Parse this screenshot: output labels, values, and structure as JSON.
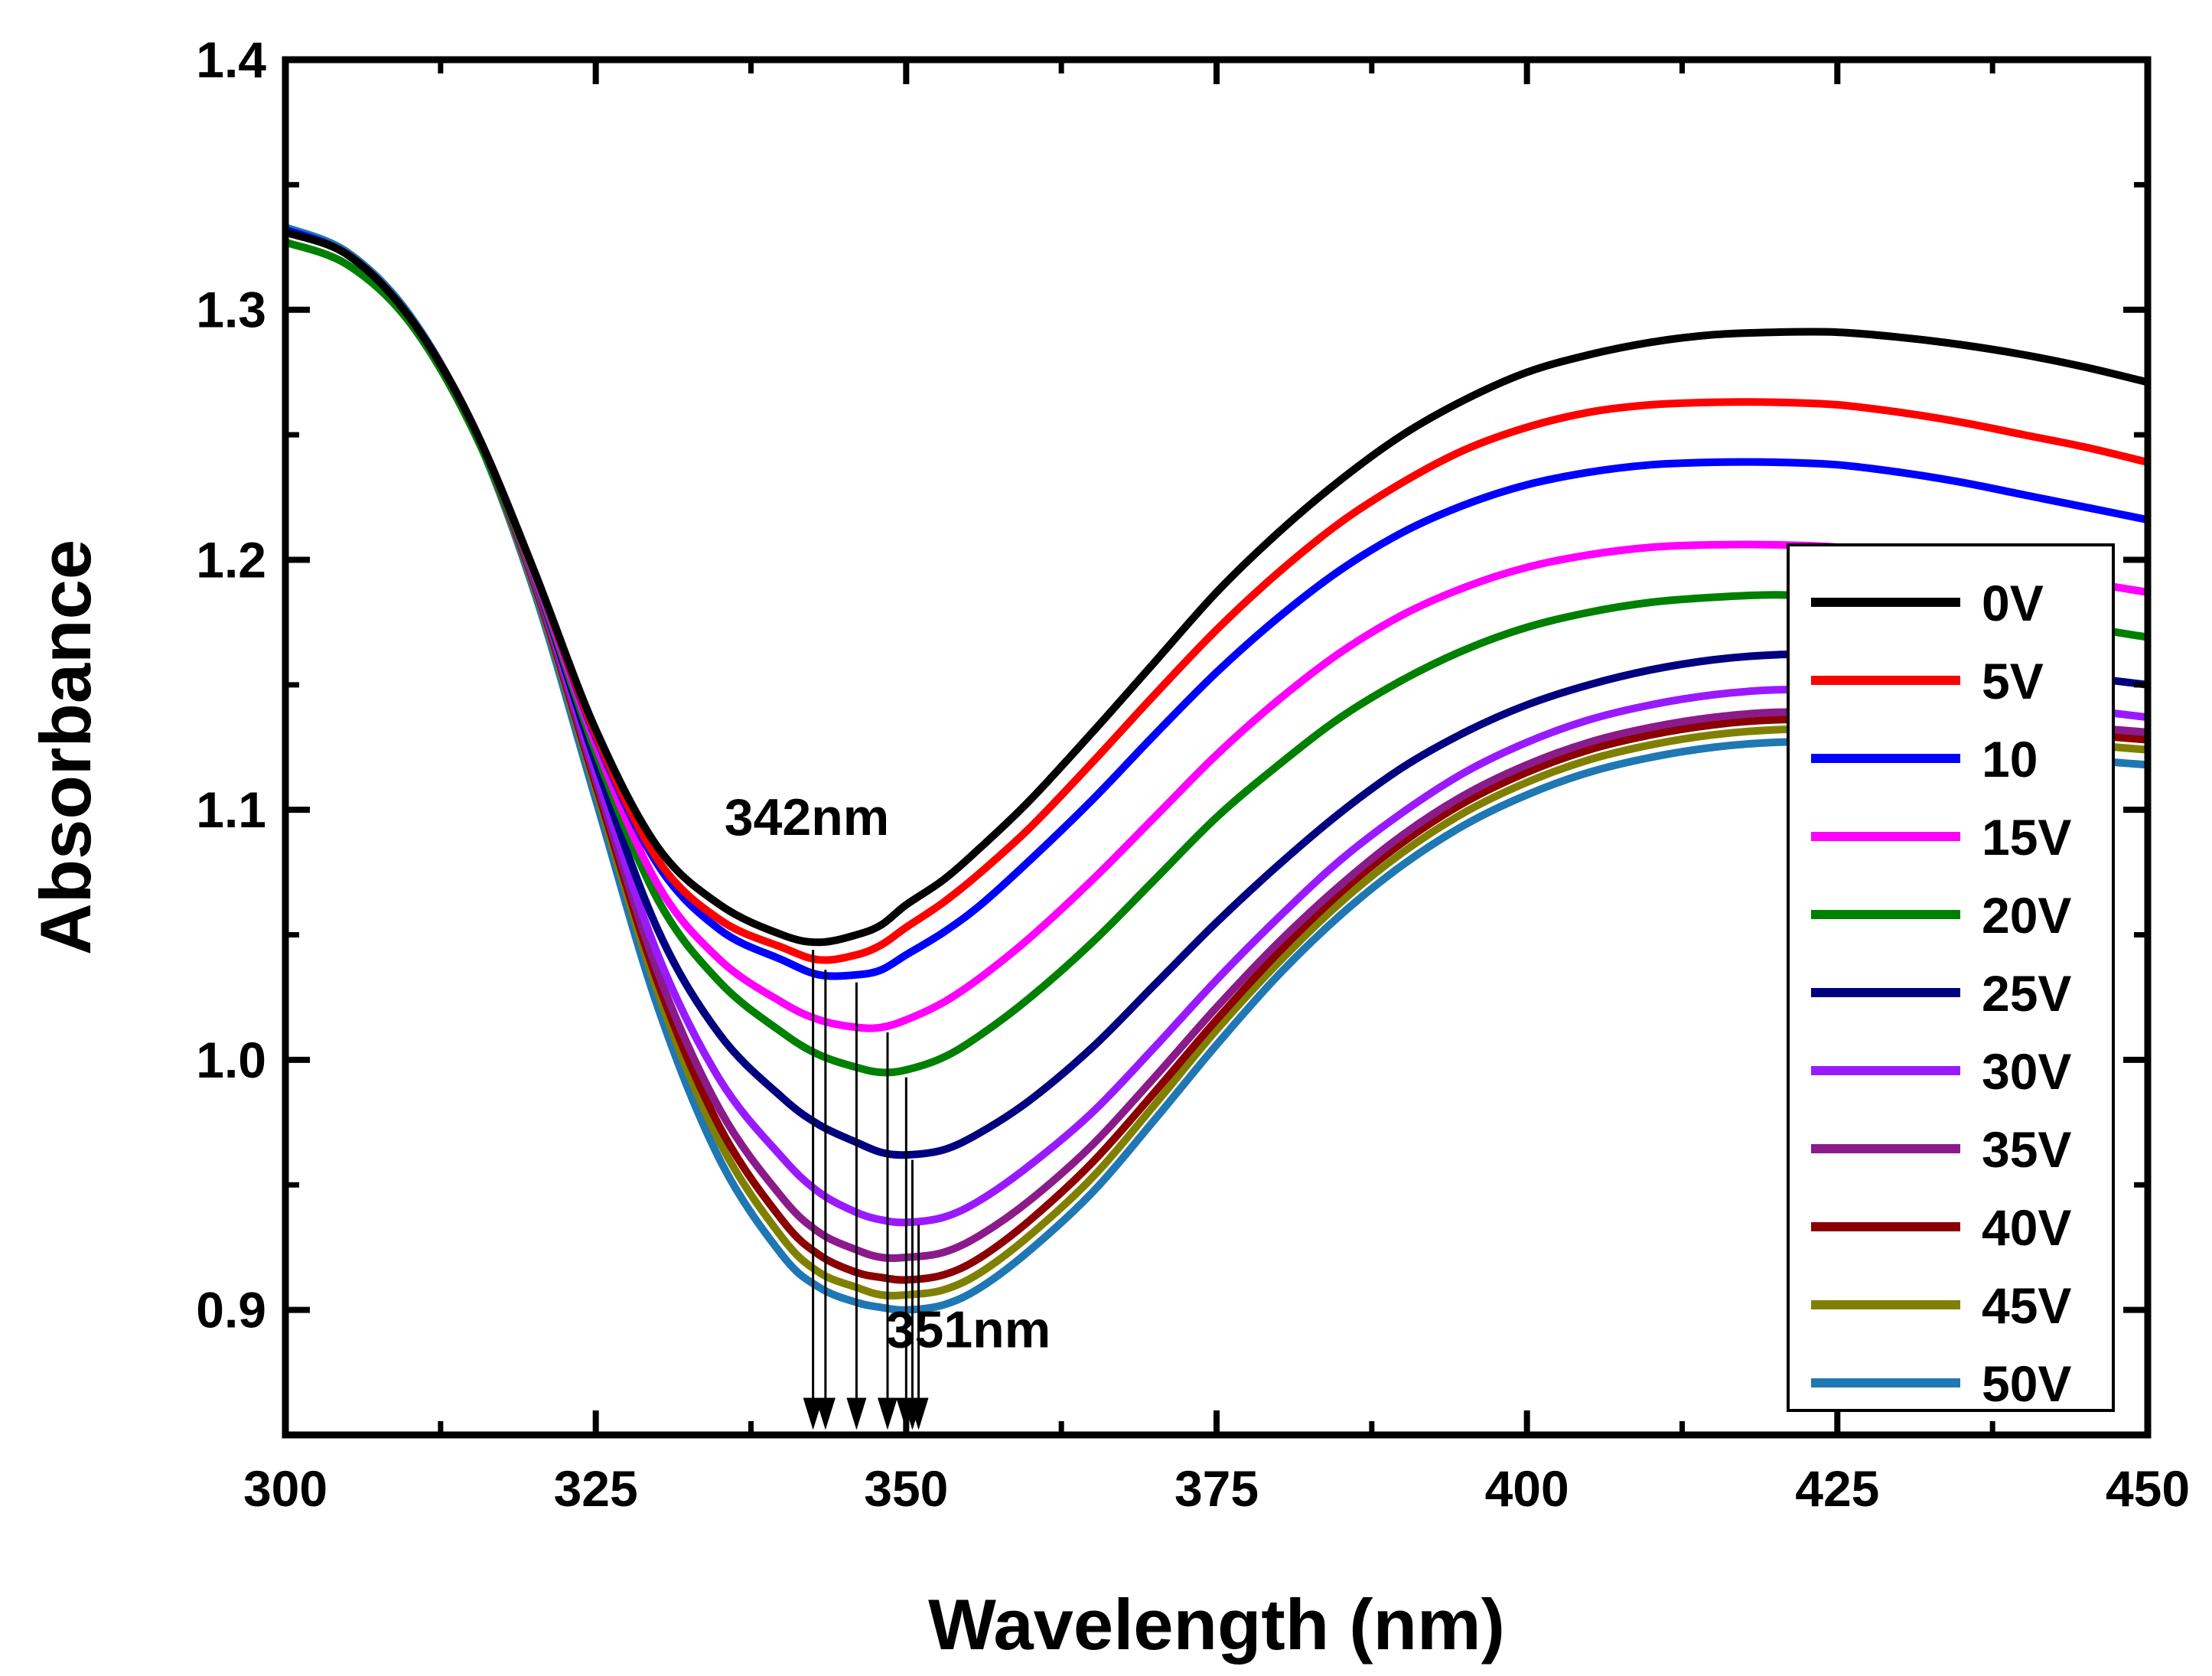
{
  "chart_data": {
    "type": "line",
    "xlabel": "Wavelength (nm)",
    "ylabel": "Absorbance",
    "xlim": [
      300,
      450
    ],
    "ylim": [
      0.85,
      1.4
    ],
    "xticks": [
      300,
      325,
      350,
      375,
      400,
      425,
      450
    ],
    "yticks": [
      0.9,
      1.0,
      1.1,
      1.2,
      1.3,
      1.4
    ],
    "xtick_labels": [
      "300",
      "325",
      "350",
      "375",
      "400",
      "425",
      "450"
    ],
    "ytick_labels": [
      "0.9",
      "1.0",
      "1.1",
      "1.2",
      "1.3",
      "1.4"
    ],
    "grid": false,
    "legend_position": "right",
    "x": [
      300,
      305,
      310,
      315,
      320,
      325,
      330,
      335,
      340,
      343,
      346,
      348,
      350,
      353,
      356,
      360,
      365,
      370,
      375,
      380,
      385,
      390,
      395,
      400,
      405,
      410,
      415,
      420,
      425,
      430,
      435,
      440,
      445,
      450
    ],
    "series": [
      {
        "name": "0V",
        "color": "#000000",
        "values": [
          1.331,
          1.322,
          1.297,
          1.255,
          1.196,
          1.132,
          1.085,
          1.062,
          1.05,
          1.047,
          1.05,
          1.054,
          1.062,
          1.072,
          1.085,
          1.104,
          1.131,
          1.159,
          1.187,
          1.211,
          1.232,
          1.25,
          1.264,
          1.275,
          1.282,
          1.287,
          1.29,
          1.291,
          1.291,
          1.289,
          1.286,
          1.282,
          1.277,
          1.271
        ]
      },
      {
        "name": "5V",
        "color": "#ff0000",
        "values": [
          1.331,
          1.322,
          1.297,
          1.255,
          1.196,
          1.13,
          1.08,
          1.056,
          1.045,
          1.04,
          1.042,
          1.046,
          1.053,
          1.063,
          1.075,
          1.093,
          1.119,
          1.146,
          1.172,
          1.195,
          1.215,
          1.231,
          1.244,
          1.253,
          1.259,
          1.262,
          1.263,
          1.263,
          1.262,
          1.259,
          1.255,
          1.25,
          1.245,
          1.239
        ]
      },
      {
        "name": "10",
        "color": "#0000ff",
        "values": [
          1.332,
          1.322,
          1.297,
          1.255,
          1.196,
          1.129,
          1.078,
          1.052,
          1.04,
          1.034,
          1.034,
          1.036,
          1.042,
          1.051,
          1.062,
          1.08,
          1.104,
          1.13,
          1.155,
          1.177,
          1.196,
          1.211,
          1.222,
          1.23,
          1.235,
          1.238,
          1.239,
          1.239,
          1.238,
          1.235,
          1.231,
          1.226,
          1.221,
          1.216
        ]
      },
      {
        "name": "15V",
        "color": "#ff00ff",
        "values": [
          1.331,
          1.322,
          1.297,
          1.255,
          1.195,
          1.126,
          1.07,
          1.04,
          1.023,
          1.016,
          1.013,
          1.013,
          1.016,
          1.023,
          1.033,
          1.049,
          1.072,
          1.097,
          1.122,
          1.144,
          1.163,
          1.178,
          1.189,
          1.197,
          1.202,
          1.205,
          1.206,
          1.206,
          1.205,
          1.202,
          1.199,
          1.195,
          1.191,
          1.187
        ]
      },
      {
        "name": "20V",
        "color": "#008000",
        "values": [
          1.327,
          1.318,
          1.295,
          1.253,
          1.194,
          1.123,
          1.064,
          1.031,
          1.011,
          1.002,
          0.997,
          0.995,
          0.996,
          1.001,
          1.01,
          1.025,
          1.047,
          1.072,
          1.097,
          1.118,
          1.137,
          1.152,
          1.164,
          1.173,
          1.179,
          1.183,
          1.185,
          1.186,
          1.185,
          1.183,
          1.18,
          1.177,
          1.173,
          1.169
        ]
      },
      {
        "name": "25V",
        "color": "#000080",
        "values": [
          1.331,
          1.322,
          1.297,
          1.255,
          1.194,
          1.119,
          1.052,
          1.01,
          0.985,
          0.974,
          0.967,
          0.963,
          0.962,
          0.964,
          0.971,
          0.984,
          1.005,
          1.03,
          1.055,
          1.078,
          1.099,
          1.117,
          1.131,
          1.142,
          1.15,
          1.156,
          1.16,
          1.162,
          1.162,
          1.161,
          1.159,
          1.156,
          1.153,
          1.15
        ]
      },
      {
        "name": "30V",
        "color": "#9a1aff",
        "values": [
          1.331,
          1.322,
          1.297,
          1.255,
          1.193,
          1.115,
          1.042,
          0.992,
          0.961,
          0.947,
          0.939,
          0.936,
          0.935,
          0.937,
          0.944,
          0.958,
          0.979,
          1.005,
          1.032,
          1.057,
          1.08,
          1.099,
          1.115,
          1.127,
          1.136,
          1.142,
          1.146,
          1.148,
          1.148,
          1.147,
          1.145,
          1.143,
          1.14,
          1.137
        ]
      },
      {
        "name": "35V",
        "color": "#8b1a8b",
        "values": [
          1.331,
          1.322,
          1.297,
          1.254,
          1.192,
          1.112,
          1.035,
          0.98,
          0.945,
          0.931,
          0.924,
          0.921,
          0.921,
          0.923,
          0.93,
          0.944,
          0.966,
          0.993,
          1.021,
          1.047,
          1.07,
          1.09,
          1.106,
          1.118,
          1.127,
          1.133,
          1.137,
          1.139,
          1.139,
          1.138,
          1.137,
          1.135,
          1.133,
          1.131
        ]
      },
      {
        "name": "40V",
        "color": "#8b0000",
        "values": [
          1.331,
          1.322,
          1.297,
          1.254,
          1.191,
          1.11,
          1.031,
          0.973,
          0.936,
          0.922,
          0.915,
          0.913,
          0.912,
          0.914,
          0.921,
          0.936,
          0.959,
          0.987,
          1.016,
          1.043,
          1.067,
          1.087,
          1.103,
          1.115,
          1.124,
          1.13,
          1.134,
          1.136,
          1.136,
          1.135,
          1.134,
          1.132,
          1.13,
          1.128
        ]
      },
      {
        "name": "45V",
        "color": "#808000",
        "values": [
          1.331,
          1.322,
          1.297,
          1.254,
          1.19,
          1.108,
          1.027,
          0.967,
          0.929,
          0.915,
          0.909,
          0.906,
          0.906,
          0.908,
          0.915,
          0.93,
          0.953,
          0.982,
          1.012,
          1.039,
          1.063,
          1.083,
          1.099,
          1.111,
          1.12,
          1.126,
          1.13,
          1.132,
          1.132,
          1.131,
          1.13,
          1.128,
          1.126,
          1.124
        ]
      },
      {
        "name": "50V",
        "color": "#1f77b4",
        "values": [
          1.333,
          1.323,
          1.298,
          1.254,
          1.188,
          1.104,
          1.021,
          0.96,
          0.922,
          0.909,
          0.903,
          0.901,
          0.9,
          0.902,
          0.909,
          0.924,
          0.947,
          0.976,
          1.006,
          1.034,
          1.058,
          1.078,
          1.094,
          1.106,
          1.115,
          1.121,
          1.125,
          1.127,
          1.127,
          1.126,
          1.125,
          1.123,
          1.12,
          1.118
        ]
      }
    ],
    "annotations": [
      {
        "text": "342nm",
        "x": 342,
        "y": 1.09
      },
      {
        "text": "351nm",
        "x": 355,
        "y": 0.885
      }
    ],
    "arrows": [
      {
        "x": 342.5,
        "from": 1.044,
        "to": 0.852
      },
      {
        "x": 343.5,
        "from": 1.036,
        "to": 0.852
      },
      {
        "x": 346,
        "from": 1.031,
        "to": 0.852
      },
      {
        "x": 348.5,
        "from": 1.011,
        "to": 0.852
      },
      {
        "x": 350,
        "from": 0.993,
        "to": 0.852
      },
      {
        "x": 350.5,
        "from": 0.96,
        "to": 0.852
      },
      {
        "x": 351,
        "from": 0.934,
        "to": 0.852
      }
    ]
  }
}
